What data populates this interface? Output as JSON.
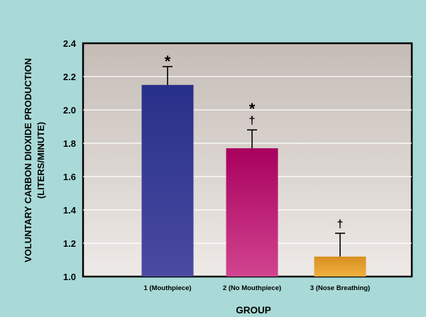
{
  "chart_data": {
    "type": "bar",
    "ylabel_line1": "VOLUNTARY CARBON DIOXIDE PRODUCTION",
    "ylabel_line2": "(LITERS/MINUTE)",
    "xlabel": "GROUP",
    "ylim": [
      1.0,
      2.4
    ],
    "yticks": [
      "1.0",
      "1.2",
      "1.4",
      "1.6",
      "1.8",
      "2.0",
      "2.2",
      "2.4"
    ],
    "grid": true,
    "categories": [
      "1 (Mouthpiece)",
      "2 (No Mouthpiece)",
      "3 (Nose Breathing)"
    ],
    "values": [
      2.15,
      1.77,
      1.12
    ],
    "error_upper": [
      2.26,
      1.88,
      1.26
    ],
    "markers": [
      [
        "*"
      ],
      [
        "*",
        "†"
      ],
      [
        "†"
      ]
    ],
    "colors": {
      "bar1_top": "#273089",
      "bar1_bottom": "#4a4aa0",
      "bar2_top": "#a8005e",
      "bar2_bottom": "#d1448f",
      "bar3_top": "#d89020",
      "bar3_bottom": "#f0b040",
      "background": "#a9dad7",
      "plot_top": "#c5bcb6",
      "plot_bottom": "#eeeae7"
    }
  }
}
